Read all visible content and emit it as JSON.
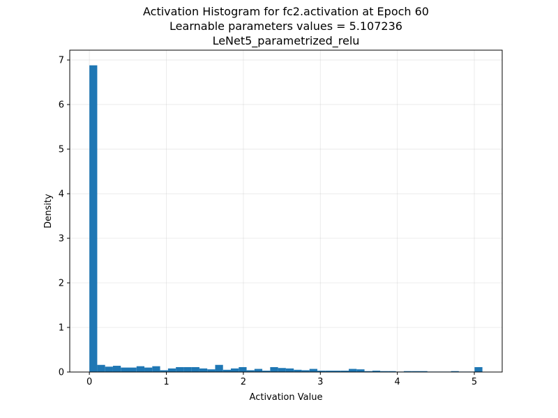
{
  "chart_data": {
    "type": "bar",
    "title_lines": [
      "Activation Histogram for fc2.activation at Epoch 60",
      "Learnable parameters values = 5.107236",
      "LeNet5_parametrized_relu"
    ],
    "xlabel": "Activation Value",
    "ylabel": "Density",
    "xlim": [
      -0.255,
      5.362
    ],
    "ylim": [
      0,
      7.22
    ],
    "x_ticks": [
      0,
      1,
      2,
      3,
      4,
      5
    ],
    "y_ticks": [
      0,
      1,
      2,
      3,
      4,
      5,
      6,
      7
    ],
    "grid": true,
    "bar_color": "#1f77b4",
    "bin_width": 0.1021,
    "bin_start": 0,
    "values": [
      6.88,
      0.16,
      0.12,
      0.14,
      0.1,
      0.1,
      0.13,
      0.1,
      0.13,
      0.04,
      0.08,
      0.11,
      0.11,
      0.11,
      0.08,
      0.06,
      0.16,
      0.05,
      0.08,
      0.11,
      0.04,
      0.07,
      0.03,
      0.11,
      0.09,
      0.08,
      0.05,
      0.04,
      0.07,
      0.03,
      0.03,
      0.03,
      0.03,
      0.07,
      0.06,
      0.02,
      0.03,
      0.02,
      0.02,
      0.01,
      0.02,
      0.02,
      0.02,
      0.01,
      0.01,
      0.01,
      0.02,
      0.01,
      0.01,
      0.11
    ]
  }
}
